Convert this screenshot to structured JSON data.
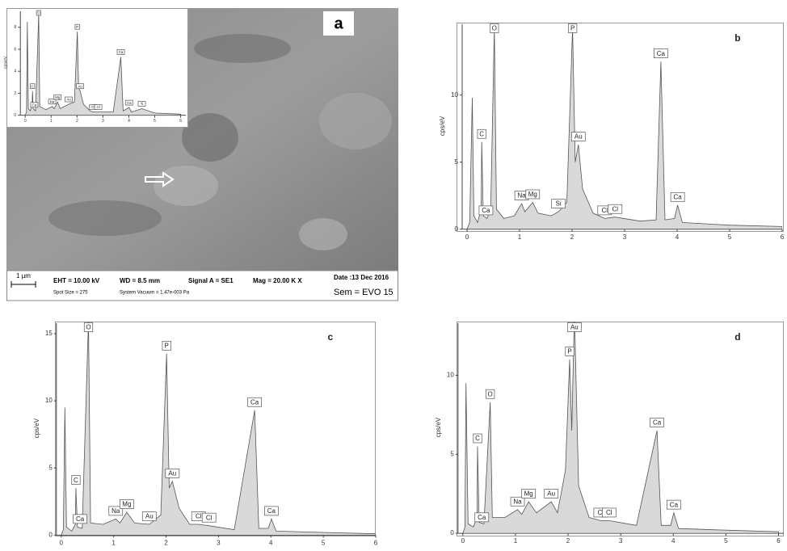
{
  "sem_image": {
    "label": "a",
    "scale_bar": "1 µm",
    "eht": "EHT = 10.00 kV",
    "wd": "WD = 8.5 mm",
    "signal": "Signal A = SE1",
    "mag": "Mag =  20.00 K X",
    "date": "Date :13 Dec 2016",
    "spot": "Spot Size = 275",
    "vacuum": "System Vacuum = 1.47e-003 Pa",
    "sem": "Sem = EVO 15"
  },
  "chart_data": [
    {
      "type": "area",
      "ylabel": "cps/eV",
      "color": "#d9d9d9",
      "x": [
        0,
        0.05,
        0.08,
        0.12,
        0.2,
        0.27,
        0.28,
        0.31,
        0.4,
        0.52,
        0.56,
        0.8,
        1.04,
        1.12,
        1.25,
        1.35,
        1.68,
        1.9,
        2.01,
        2.06,
        2.12,
        2.25,
        2.5,
        2.62,
        2.82,
        3.4,
        3.69,
        3.78,
        4.01,
        4.1,
        4.5,
        5,
        6
      ],
      "values": [
        0,
        0.3,
        8.5,
        0.6,
        0.4,
        1.2,
        2.2,
        0.6,
        0.4,
        9.2,
        0.8,
        0.5,
        0.8,
        0.6,
        1.2,
        0.6,
        1.0,
        1.2,
        7.6,
        2.5,
        2.2,
        1,
        0.4,
        0.3,
        0.3,
        0.3,
        5.3,
        0.4,
        0.7,
        0.3,
        0.6,
        0.2,
        0.1
      ],
      "xlim": [
        -0.1,
        6.2
      ],
      "ylim": [
        -0.1,
        9.6
      ],
      "xticks": [
        0,
        1,
        2,
        3,
        4,
        5,
        6
      ],
      "yticks": [
        0,
        2,
        4,
        6,
        8
      ],
      "peaks": [
        {
          "label": "C",
          "x": 0.28,
          "y": 2.2
        },
        {
          "label": "Ca",
          "x": 0.35,
          "y": 0.5
        },
        {
          "label": "O",
          "x": 0.52,
          "y": 9.2
        },
        {
          "label": "Na",
          "x": 1.04,
          "y": 0.8
        },
        {
          "label": "Mg",
          "x": 1.25,
          "y": 1.2
        },
        {
          "label": "Au",
          "x": 1.68,
          "y": 1.0
        },
        {
          "label": "P",
          "x": 2.01,
          "y": 7.6
        },
        {
          "label": "Au",
          "x": 2.12,
          "y": 2.2
        },
        {
          "label": "Cl",
          "x": 2.62,
          "y": 0.3
        },
        {
          "label": "Cl",
          "x": 2.82,
          "y": 0.3
        },
        {
          "label": "Ca",
          "x": 3.69,
          "y": 5.3
        },
        {
          "label": "Ca",
          "x": 4.01,
          "y": 0.7
        },
        {
          "label": "Ti",
          "x": 4.5,
          "y": 0.6
        }
      ]
    },
    {
      "type": "area",
      "panel": "b",
      "ylabel": "cps/eV",
      "color": "#d9d9d9",
      "x": [
        0,
        0.05,
        0.1,
        0.13,
        0.2,
        0.27,
        0.28,
        0.31,
        0.38,
        0.45,
        0.52,
        0.56,
        0.7,
        0.9,
        1.04,
        1.1,
        1.25,
        1.35,
        1.6,
        1.74,
        1.9,
        2.01,
        2.06,
        2.12,
        2.2,
        2.4,
        2.62,
        2.82,
        3.3,
        3.6,
        3.69,
        3.77,
        3.95,
        4.01,
        4.1,
        5,
        6
      ],
      "values": [
        0,
        0.5,
        9.8,
        1,
        0.5,
        1.5,
        6.5,
        1,
        0.8,
        1.5,
        15,
        1.5,
        0.8,
        1,
        1.9,
        1.3,
        2,
        1.2,
        1,
        1.3,
        2,
        15,
        5,
        6.3,
        3,
        1.2,
        0.8,
        0.9,
        0.6,
        0.7,
        12.5,
        0.7,
        0.8,
        1.8,
        0.5,
        0.3,
        0.2
      ],
      "xlim": [
        -0.2,
        6.0
      ],
      "ylim": [
        -0.2,
        15.4
      ],
      "xticks": [
        0,
        1,
        2,
        3,
        4,
        5,
        6
      ],
      "yticks": [
        0,
        5,
        10
      ],
      "peaks": [
        {
          "label": "C",
          "x": 0.28,
          "y": 6.5
        },
        {
          "label": "Ca",
          "x": 0.36,
          "y": 0.8
        },
        {
          "label": "O",
          "x": 0.52,
          "y": 15
        },
        {
          "label": "Na",
          "x": 1.04,
          "y": 1.9
        },
        {
          "label": "Mg",
          "x": 1.25,
          "y": 2
        },
        {
          "label": "Si",
          "x": 1.74,
          "y": 1.3
        },
        {
          "label": "P",
          "x": 2.01,
          "y": 15
        },
        {
          "label": "Au",
          "x": 2.12,
          "y": 6.3
        },
        {
          "label": "Cl",
          "x": 2.62,
          "y": 0.8
        },
        {
          "label": "Cl",
          "x": 2.82,
          "y": 0.9
        },
        {
          "label": "Ca",
          "x": 3.69,
          "y": 12.5
        },
        {
          "label": "Ca",
          "x": 4.01,
          "y": 1.8
        }
      ]
    },
    {
      "type": "area",
      "panel": "c",
      "ylabel": "cps/eV",
      "color": "#d9d9d9",
      "x": [
        0,
        0.04,
        0.07,
        0.1,
        0.2,
        0.27,
        0.28,
        0.31,
        0.4,
        0.52,
        0.56,
        0.8,
        1.04,
        1.12,
        1.25,
        1.4,
        1.68,
        1.9,
        2.01,
        2.06,
        2.12,
        2.25,
        2.45,
        2.62,
        2.82,
        3.3,
        3.69,
        3.77,
        3.95,
        4.01,
        4.1,
        5,
        6
      ],
      "values": [
        0,
        0.4,
        9.5,
        0.6,
        0.3,
        0.8,
        3.5,
        0.6,
        0.5,
        16,
        0.9,
        0.8,
        1.2,
        0.9,
        1.7,
        0.9,
        0.8,
        1.5,
        13.5,
        3.5,
        4,
        2,
        0.8,
        0.8,
        0.7,
        0.4,
        9.3,
        0.5,
        0.5,
        1.2,
        0.3,
        0.2,
        0.1
      ],
      "xlim": [
        -0.12,
        6.0
      ],
      "ylim": [
        -0.1,
        15.9
      ],
      "xticks": [
        0,
        1,
        2,
        3,
        4,
        5,
        6
      ],
      "yticks": [
        0,
        5,
        10,
        15
      ],
      "peaks": [
        {
          "label": "C",
          "x": 0.28,
          "y": 3.5
        },
        {
          "label": "Ca",
          "x": 0.36,
          "y": 0.6
        },
        {
          "label": "O",
          "x": 0.52,
          "y": 16
        },
        {
          "label": "Na",
          "x": 1.04,
          "y": 1.2
        },
        {
          "label": "Mg",
          "x": 1.25,
          "y": 1.7
        },
        {
          "label": "Au",
          "x": 1.68,
          "y": 0.8
        },
        {
          "label": "P",
          "x": 2.01,
          "y": 13.5
        },
        {
          "label": "Au",
          "x": 2.12,
          "y": 4
        },
        {
          "label": "Cl",
          "x": 2.62,
          "y": 0.8
        },
        {
          "label": "Cl",
          "x": 2.82,
          "y": 0.7
        },
        {
          "label": "Ca",
          "x": 3.69,
          "y": 9.3
        },
        {
          "label": "Ca",
          "x": 4.01,
          "y": 1.2
        }
      ]
    },
    {
      "type": "area",
      "panel": "d",
      "ylabel": "cps/eV",
      "color": "#d9d9d9",
      "x": [
        0,
        0.04,
        0.06,
        0.1,
        0.2,
        0.27,
        0.28,
        0.31,
        0.4,
        0.52,
        0.56,
        0.8,
        1.04,
        1.12,
        1.25,
        1.4,
        1.68,
        1.8,
        1.95,
        2.03,
        2.07,
        2.12,
        2.2,
        2.4,
        2.62,
        2.78,
        3.3,
        3.69,
        3.77,
        3.95,
        4.01,
        4.1,
        5,
        6
      ],
      "values": [
        0,
        0.4,
        9.5,
        0.6,
        0.4,
        1,
        5.5,
        0.7,
        0.6,
        8.3,
        1,
        1,
        1.5,
        1.2,
        2,
        1.3,
        2,
        1.3,
        4,
        11,
        6.5,
        14,
        3,
        1,
        0.8,
        0.8,
        0.5,
        6.5,
        0.5,
        0.5,
        1.3,
        0.3,
        0.2,
        0.1
      ],
      "xlim": [
        -0.12,
        6.1
      ],
      "ylim": [
        -0.2,
        13.4
      ],
      "xticks": [
        0,
        1,
        2,
        3,
        4,
        5,
        6
      ],
      "yticks": [
        0,
        5,
        10
      ],
      "peaks": [
        {
          "label": "C",
          "x": 0.28,
          "y": 5.5
        },
        {
          "label": "Ca",
          "x": 0.36,
          "y": 0.5
        },
        {
          "label": "O",
          "x": 0.52,
          "y": 8.3
        },
        {
          "label": "Na",
          "x": 1.04,
          "y": 1.5
        },
        {
          "label": "Mg",
          "x": 1.25,
          "y": 2
        },
        {
          "label": "Au",
          "x": 1.68,
          "y": 2
        },
        {
          "label": "P",
          "x": 2.03,
          "y": 11
        },
        {
          "label": "Au",
          "x": 2.12,
          "y": 14
        },
        {
          "label": "Cl",
          "x": 2.62,
          "y": 0.8
        },
        {
          "label": "Cl",
          "x": 2.78,
          "y": 0.8
        },
        {
          "label": "Ca",
          "x": 3.69,
          "y": 6.5
        },
        {
          "label": "Ca",
          "x": 4.01,
          "y": 1.3
        }
      ]
    }
  ]
}
